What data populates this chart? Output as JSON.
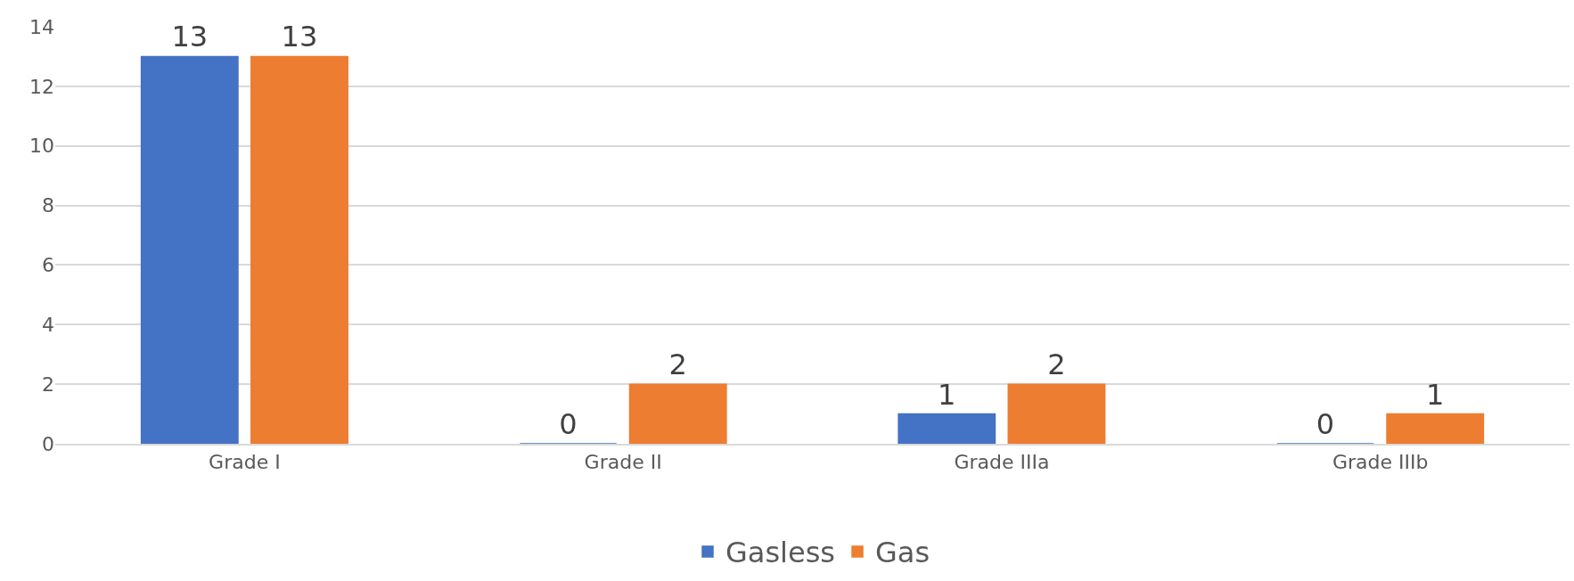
{
  "chart_data": {
    "type": "bar",
    "categories": [
      "Grade I",
      "Grade II",
      "Grade IIIa",
      "Grade IIIb"
    ],
    "series": [
      {
        "name": "Gasless",
        "color": "#4472c4",
        "values": [
          13,
          0,
          1,
          0
        ]
      },
      {
        "name": "Gas",
        "color": "#ed7d31",
        "values": [
          13,
          2,
          2,
          1
        ]
      }
    ],
    "ylim": [
      0,
      14
    ],
    "yticks": [
      0,
      2,
      4,
      6,
      8,
      10,
      12,
      14
    ],
    "grid": "y",
    "legend": "bottom",
    "data_labels": true
  }
}
